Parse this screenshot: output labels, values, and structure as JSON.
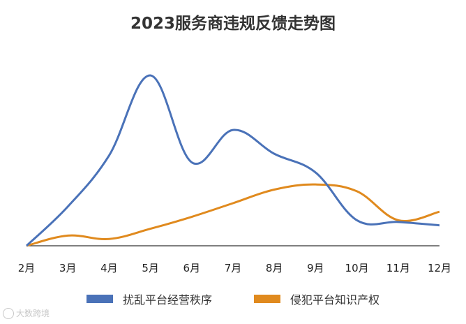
{
  "chart_data": {
    "type": "line",
    "title": "2023服务商违规反馈走势图",
    "categories": [
      "2月",
      "3月",
      "4月",
      "5月",
      "6月",
      "7月",
      "8月",
      "9月",
      "10月",
      "11月",
      "12月"
    ],
    "series": [
      {
        "name": "扰乱平台经营秩序",
        "color": "#4a72b8",
        "values": [
          0,
          23,
          53,
          100,
          49,
          68,
          54,
          43,
          15,
          14,
          12
        ]
      },
      {
        "name": "侵犯平台知识产权",
        "color": "#e08a1e",
        "values": [
          0,
          6,
          4,
          10,
          17,
          25,
          33,
          36,
          32,
          15,
          20
        ]
      }
    ],
    "ylim": [
      0,
      100
    ],
    "grid": false,
    "legend_position": "bottom",
    "smooth": true
  },
  "watermark": {
    "text": "大数跨境"
  }
}
